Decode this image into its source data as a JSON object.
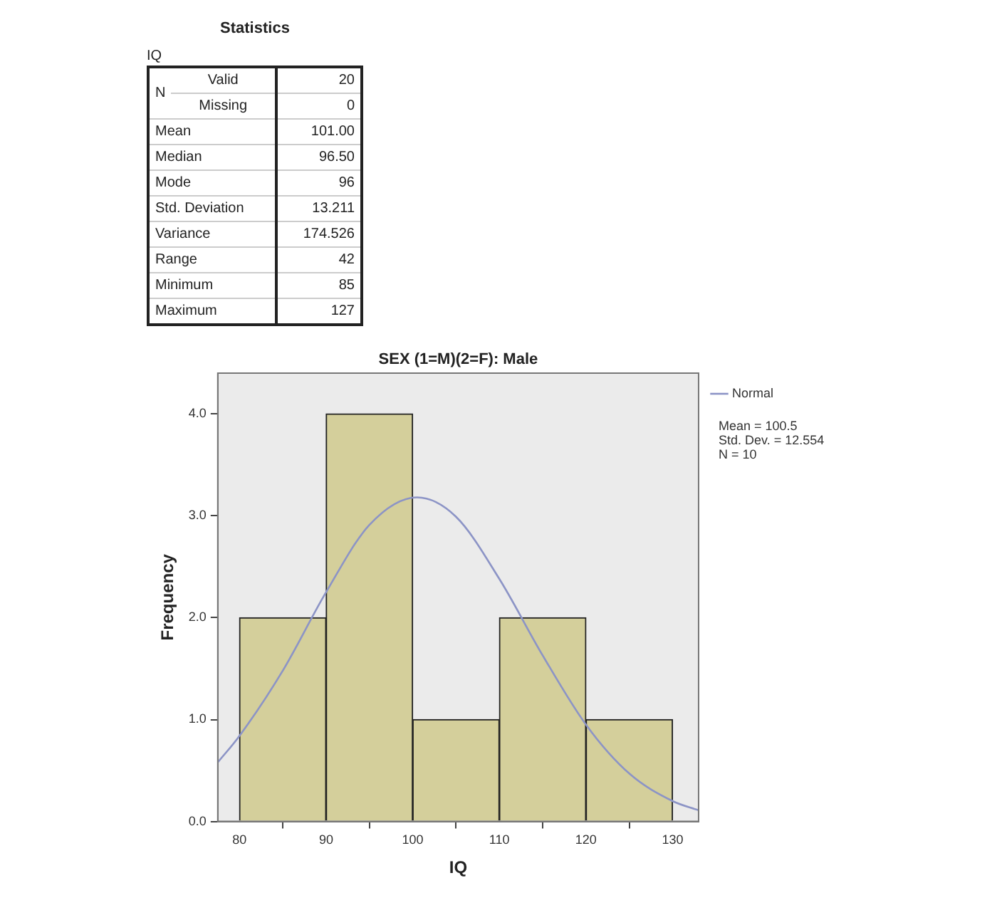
{
  "chart_data": [
    {
      "type": "other",
      "title": "Statistics",
      "annotations": [
        "IQ",
        "N"
      ],
      "categories": [
        "Valid",
        "Missing",
        "Mean",
        "Median",
        "Mode",
        "Std. Deviation",
        "Variance",
        "Range",
        "Minimum",
        "Maximum"
      ],
      "value_labels": [
        "20",
        "0",
        "101.00",
        "96.50",
        "96",
        "13.211",
        "174.526",
        "42",
        "85",
        "127"
      ]
    },
    {
      "type": "histogram",
      "title": "SEX (1=M)(2=F): Male",
      "xlabel": "IQ",
      "ylabel": "Frequency",
      "bins": [
        80,
        90,
        100,
        110,
        120,
        130
      ],
      "values": [
        2,
        4,
        1,
        2,
        1
      ],
      "color": "#d4cf9b",
      "series": [
        {
          "name": "Normal",
          "type": "line",
          "color": "#8c94c6",
          "x": [
            77.5,
            80,
            85,
            90,
            95,
            100.5,
            105,
            110,
            115,
            120,
            125,
            130,
            133
          ],
          "values": [
            0.58,
            0.84,
            1.48,
            2.25,
            2.91,
            3.18,
            2.99,
            2.38,
            1.63,
            0.95,
            0.47,
            0.2,
            0.11
          ]
        }
      ],
      "annotations": [
        "Mean = 100.5",
        "Std. Dev. = 12.554",
        "N = 10"
      ],
      "xlim": [
        77.5,
        133
      ],
      "xticks": [
        80,
        90,
        100,
        110,
        120,
        130
      ],
      "ylim": [
        0,
        4.4
      ],
      "yticks": [
        {
          "value": 0,
          "label": "0.0"
        },
        {
          "value": 1,
          "label": "1.0"
        },
        {
          "value": 2,
          "label": "2.0"
        },
        {
          "value": 3,
          "label": "3.0"
        },
        {
          "value": 4,
          "label": "4.0"
        }
      ],
      "grid": false,
      "legend": "top right",
      "marker": "none"
    }
  ]
}
